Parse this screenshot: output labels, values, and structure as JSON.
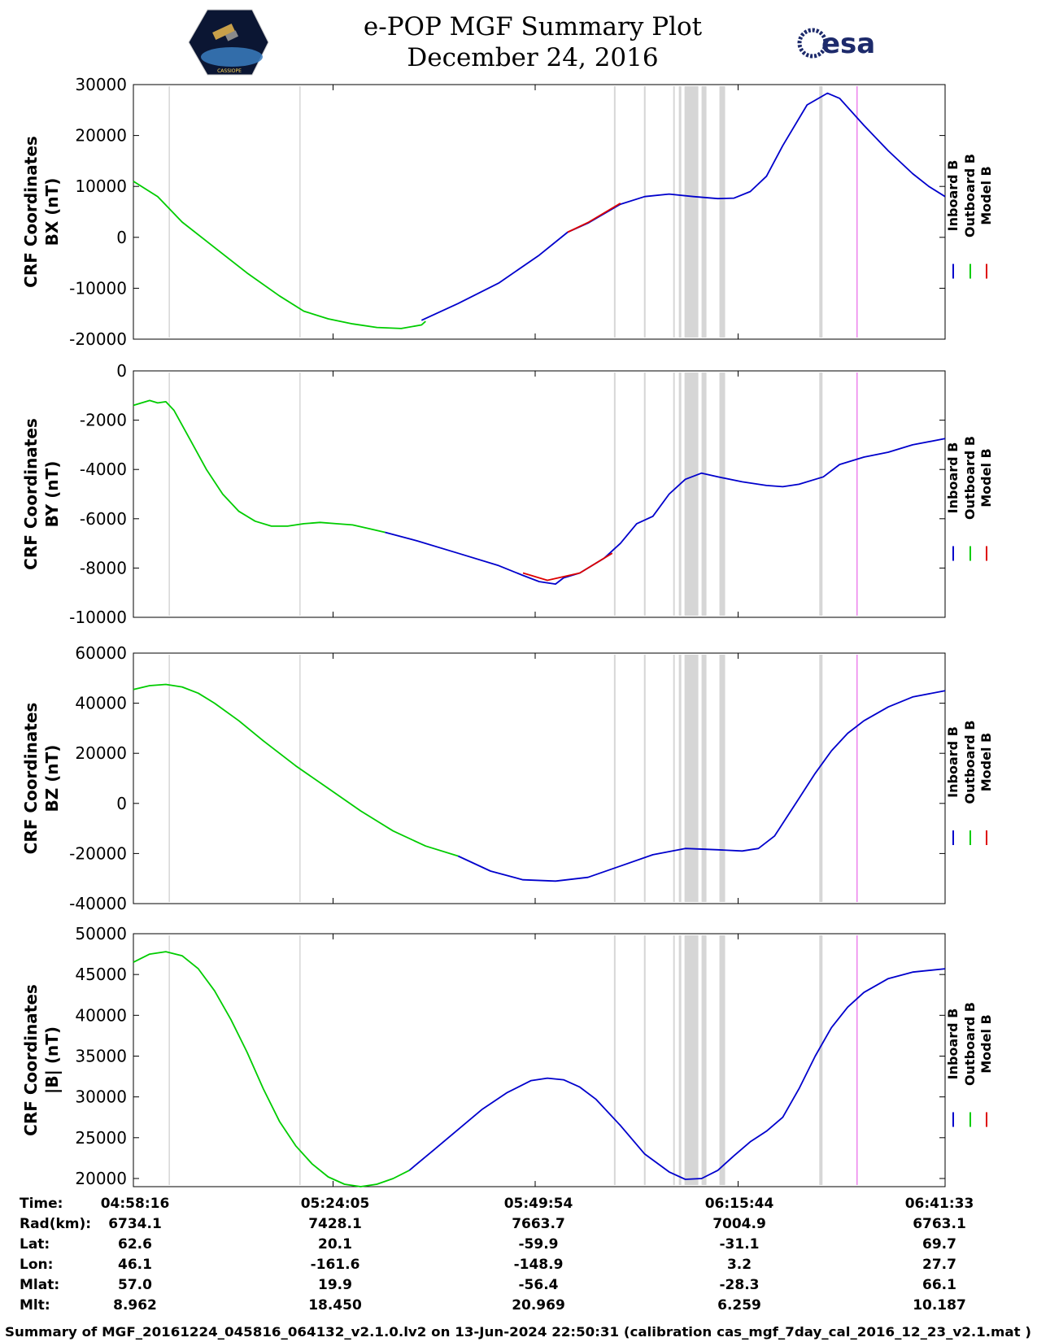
{
  "header": {
    "title_line1": "e-POP MGF Summary Plot",
    "title_line2": "December 24, 2016",
    "logo_right_text": "esa",
    "logo_left_text": "CASSIOPE"
  },
  "colors": {
    "inboard": "#0000cc",
    "outboard": "#00cc00",
    "model": "#dd0000",
    "gap_band": "#d6d6d6",
    "magenta_marker": "#ee88ee"
  },
  "chart_data": [
    {
      "type": "line",
      "id": "bx",
      "ylabel_line1": "CRF Coordinates",
      "ylabel_line2": "BX (nT)",
      "ylim": [
        -20000,
        30000
      ],
      "yticks": [
        30000,
        20000,
        10000,
        0,
        -10000,
        -20000
      ],
      "ytick_labels": [
        "30000",
        "20000",
        "10000",
        "0",
        "-10000",
        "-20000"
      ],
      "series": [
        {
          "name": "Outboard B",
          "color_key": "outboard",
          "x": [
            0,
            0.03,
            0.06,
            0.1,
            0.14,
            0.18,
            0.21,
            0.24,
            0.27,
            0.3,
            0.33,
            0.355,
            0.36
          ],
          "y": [
            11000,
            8000,
            3000,
            -2000,
            -7000,
            -11500,
            -14500,
            -16000,
            -17000,
            -17700,
            -17900,
            -17200,
            -16500
          ]
        },
        {
          "name": "Inboard B",
          "color_key": "inboard",
          "x": [
            0.355,
            0.4,
            0.45,
            0.5,
            0.535,
            0.56,
            0.6,
            0.63,
            0.66,
            0.69,
            0.72,
            0.74,
            0.76,
            0.78,
            0.8,
            0.83,
            0.855,
            0.87,
            0.9,
            0.93,
            0.96,
            0.98,
            1.0
          ],
          "y": [
            -16300,
            -13000,
            -9000,
            -3500,
            1000,
            2800,
            6500,
            8000,
            8500,
            8000,
            7600,
            7700,
            9000,
            12000,
            18000,
            26000,
            28300,
            27300,
            22000,
            17000,
            12500,
            10000,
            8000
          ]
        },
        {
          "name": "Model B",
          "color_key": "model",
          "x": [
            0.535,
            0.56,
            0.6
          ],
          "y": [
            1000,
            2900,
            6700
          ]
        }
      ]
    },
    {
      "type": "line",
      "id": "by",
      "ylabel_line1": "CRF Coordinates",
      "ylabel_line2": "BY (nT)",
      "ylim": [
        -10000,
        0
      ],
      "yticks": [
        0,
        -2000,
        -4000,
        -6000,
        -8000,
        -10000
      ],
      "ytick_labels": [
        "0",
        "-2000",
        "-4000",
        "-6000",
        "-8000",
        "-10000"
      ],
      "series": [
        {
          "name": "Outboard B",
          "color_key": "outboard",
          "x": [
            0,
            0.01,
            0.02,
            0.03,
            0.04,
            0.05,
            0.07,
            0.09,
            0.11,
            0.13,
            0.15,
            0.17,
            0.19,
            0.21,
            0.23,
            0.25,
            0.27,
            0.29,
            0.31
          ],
          "y": [
            -1400,
            -1300,
            -1200,
            -1300,
            -1250,
            -1600,
            -2800,
            -4000,
            -5000,
            -5700,
            -6100,
            -6300,
            -6300,
            -6200,
            -6150,
            -6200,
            -6250,
            -6400,
            -6550
          ]
        },
        {
          "name": "Inboard B",
          "color_key": "inboard",
          "x": [
            0.31,
            0.35,
            0.4,
            0.45,
            0.48,
            0.5,
            0.52,
            0.53,
            0.55,
            0.58,
            0.6,
            0.62,
            0.64,
            0.66,
            0.68,
            0.7,
            0.72,
            0.75,
            0.78,
            0.8,
            0.82,
            0.85,
            0.87,
            0.9,
            0.93,
            0.96,
            1.0
          ],
          "y": [
            -6550,
            -6900,
            -7400,
            -7900,
            -8300,
            -8550,
            -8650,
            -8400,
            -8200,
            -7600,
            -7000,
            -6200,
            -5900,
            -5000,
            -4400,
            -4150,
            -4300,
            -4500,
            -4650,
            -4700,
            -4600,
            -4300,
            -3800,
            -3500,
            -3300,
            -3000,
            -2750
          ]
        },
        {
          "name": "Model B",
          "color_key": "model",
          "x": [
            0.48,
            0.51,
            0.55,
            0.59
          ],
          "y": [
            -8200,
            -8500,
            -8200,
            -7400
          ]
        }
      ]
    },
    {
      "type": "line",
      "id": "bz",
      "ylabel_line1": "CRF Coordinates",
      "ylabel_line2": "BZ (nT)",
      "ylim": [
        -40000,
        60000
      ],
      "yticks": [
        60000,
        40000,
        20000,
        0,
        -20000,
        -40000
      ],
      "ytick_labels": [
        "60000",
        "40000",
        "20000",
        "0",
        "-20000",
        "-40000"
      ],
      "series": [
        {
          "name": "Outboard B",
          "color_key": "outboard",
          "x": [
            0,
            0.02,
            0.04,
            0.06,
            0.08,
            0.1,
            0.13,
            0.16,
            0.2,
            0.24,
            0.28,
            0.32,
            0.36,
            0.4
          ],
          "y": [
            45500,
            47000,
            47500,
            46500,
            44000,
            40000,
            33000,
            25000,
            15000,
            6000,
            -3000,
            -11000,
            -17000,
            -21000
          ]
        },
        {
          "name": "Inboard B",
          "color_key": "inboard",
          "x": [
            0.4,
            0.44,
            0.48,
            0.52,
            0.56,
            0.6,
            0.64,
            0.68,
            0.72,
            0.75,
            0.77,
            0.79,
            0.8,
            0.82,
            0.84,
            0.86,
            0.88,
            0.9,
            0.93,
            0.96,
            1.0
          ],
          "y": [
            -21000,
            -27000,
            -30500,
            -31000,
            -29500,
            -25000,
            -20500,
            -18000,
            -18500,
            -19000,
            -18000,
            -13000,
            -8000,
            2000,
            12000,
            21000,
            28000,
            33000,
            38500,
            42500,
            45000
          ]
        },
        {
          "name": "Model B",
          "color_key": "model",
          "x": [],
          "y": []
        }
      ]
    },
    {
      "type": "line",
      "id": "bmag",
      "ylabel_line1": "CRF Coordinates",
      "ylabel_line2": "|B| (nT)",
      "ylim": [
        19000,
        50000
      ],
      "yticks": [
        50000,
        45000,
        40000,
        35000,
        30000,
        25000,
        20000
      ],
      "ytick_labels": [
        "50000",
        "45000",
        "40000",
        "35000",
        "30000",
        "25000",
        "20000"
      ],
      "series": [
        {
          "name": "Outboard B",
          "color_key": "outboard",
          "x": [
            0,
            0.02,
            0.04,
            0.06,
            0.08,
            0.1,
            0.12,
            0.14,
            0.16,
            0.18,
            0.2,
            0.22,
            0.24,
            0.26,
            0.28,
            0.3,
            0.32,
            0.34
          ],
          "y": [
            46500,
            47500,
            47800,
            47300,
            45700,
            43000,
            39500,
            35500,
            31000,
            27000,
            24000,
            21800,
            20200,
            19300,
            19000,
            19300,
            20000,
            21000
          ]
        },
        {
          "name": "Inboard B",
          "color_key": "inboard",
          "x": [
            0.34,
            0.37,
            0.4,
            0.43,
            0.46,
            0.49,
            0.51,
            0.53,
            0.55,
            0.57,
            0.6,
            0.63,
            0.66,
            0.68,
            0.7,
            0.72,
            0.74,
            0.76,
            0.78,
            0.8,
            0.82,
            0.84,
            0.86,
            0.88,
            0.9,
            0.93,
            0.96,
            1.0
          ],
          "y": [
            21000,
            23500,
            26000,
            28500,
            30500,
            32000,
            32300,
            32100,
            31200,
            29700,
            26500,
            23000,
            20800,
            19900,
            20000,
            21000,
            22800,
            24500,
            25800,
            27500,
            31000,
            35000,
            38500,
            41000,
            42800,
            44500,
            45300,
            45700
          ]
        },
        {
          "name": "Model B",
          "color_key": "model",
          "x": [],
          "y": []
        }
      ]
    }
  ],
  "gap_bands": [
    {
      "x0": 0.0435,
      "x1": 0.0445
    },
    {
      "x0": 0.2045,
      "x1": 0.2055
    },
    {
      "x0": 0.592,
      "x1": 0.594
    },
    {
      "x0": 0.629,
      "x1": 0.631
    },
    {
      "x0": 0.665,
      "x1": 0.667
    },
    {
      "x0": 0.672,
      "x1": 0.675
    },
    {
      "x0": 0.679,
      "x1": 0.696
    },
    {
      "x0": 0.7,
      "x1": 0.706
    },
    {
      "x0": 0.722,
      "x1": 0.729
    },
    {
      "x0": 0.845,
      "x1": 0.849
    }
  ],
  "magenta_marker_x": 0.8915,
  "legend": {
    "inboard": "Inboard B",
    "outboard": "Outboard B",
    "model": "Model B"
  },
  "info_table": {
    "row_labels": [
      "Time:",
      "Rad(km):",
      "Lat:",
      "Lon:",
      "Mlat:",
      "Mlt:"
    ],
    "columns": [
      {
        "values": [
          "04:58:16",
          "6734.1",
          "62.6",
          "46.1",
          "57.0",
          "8.962"
        ]
      },
      {
        "values": [
          "05:24:05",
          "7428.1",
          "20.1",
          "-161.6",
          "19.9",
          "18.450"
        ]
      },
      {
        "values": [
          "05:49:54",
          "7663.7",
          "-59.9",
          "-148.9",
          "-56.4",
          "20.969"
        ]
      },
      {
        "values": [
          "06:15:44",
          "7004.9",
          "-31.1",
          "3.2",
          "-28.3",
          "6.259"
        ]
      },
      {
        "values": [
          "06:41:33",
          "6763.1",
          "69.7",
          "27.7",
          "66.1",
          "10.187"
        ]
      }
    ]
  },
  "footer": "Summary of MGF_20161224_045816_064132_v2.1.0.lv2 on 13-Jun-2024 22:50:31 (calibration cas_mgf_7day_cal_2016_12_23_v2.1.mat )"
}
